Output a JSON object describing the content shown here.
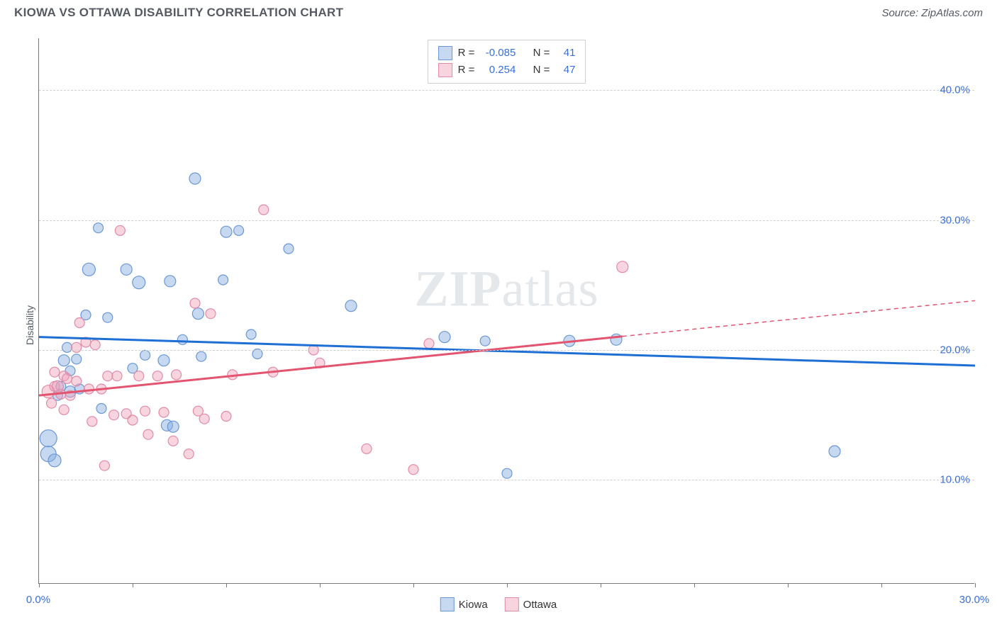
{
  "header": {
    "title": "KIOWA VS OTTAWA DISABILITY CORRELATION CHART",
    "source": "Source: ZipAtlas.com"
  },
  "ylabel": "Disability",
  "watermark_bold": "ZIP",
  "watermark_rest": "atlas",
  "chart": {
    "type": "scatter",
    "xlim": [
      0,
      30
    ],
    "ylim": [
      2,
      44
    ],
    "xticks": [
      0,
      3,
      6,
      9,
      12,
      15,
      18,
      21,
      24,
      27,
      30
    ],
    "xtick_labels": {
      "0": "0.0%",
      "30": "30.0%"
    },
    "yticks": [
      10,
      20,
      30,
      40
    ],
    "ytick_labels": [
      "10.0%",
      "20.0%",
      "30.0%",
      "40.0%"
    ],
    "background_color": "#ffffff",
    "grid_color": "#d0d0d0",
    "axis_color": "#777777",
    "tick_label_color": "#3a6fd8",
    "series": [
      {
        "name": "Kiowa",
        "fill": "rgba(130,170,225,0.45)",
        "stroke": "#6a97d3",
        "trend_color": "#1d6fd6",
        "trend": {
          "x1": 0,
          "y1": 21.0,
          "x2": 30,
          "y2": 18.8,
          "solid_until_x": 30
        },
        "r_value": "-0.085",
        "n_value": "41",
        "points": [
          {
            "x": 0.3,
            "y": 13.2,
            "r": 12
          },
          {
            "x": 0.3,
            "y": 12.0,
            "r": 11
          },
          {
            "x": 0.5,
            "y": 11.5,
            "r": 9
          },
          {
            "x": 0.6,
            "y": 16.5,
            "r": 7
          },
          {
            "x": 0.7,
            "y": 17.2,
            "r": 7
          },
          {
            "x": 0.8,
            "y": 19.2,
            "r": 8
          },
          {
            "x": 0.9,
            "y": 20.2,
            "r": 7
          },
          {
            "x": 1.0,
            "y": 16.8,
            "r": 8
          },
          {
            "x": 1.0,
            "y": 18.4,
            "r": 7
          },
          {
            "x": 1.2,
            "y": 19.3,
            "r": 7
          },
          {
            "x": 1.3,
            "y": 17.0,
            "r": 7
          },
          {
            "x": 1.5,
            "y": 22.7,
            "r": 7
          },
          {
            "x": 1.6,
            "y": 26.2,
            "r": 9
          },
          {
            "x": 1.9,
            "y": 29.4,
            "r": 7
          },
          {
            "x": 2.0,
            "y": 15.5,
            "r": 7
          },
          {
            "x": 2.2,
            "y": 22.5,
            "r": 7
          },
          {
            "x": 2.8,
            "y": 26.2,
            "r": 8
          },
          {
            "x": 3.0,
            "y": 18.6,
            "r": 7
          },
          {
            "x": 3.2,
            "y": 25.2,
            "r": 9
          },
          {
            "x": 3.4,
            "y": 19.6,
            "r": 7
          },
          {
            "x": 4.0,
            "y": 19.2,
            "r": 8
          },
          {
            "x": 4.1,
            "y": 14.2,
            "r": 8
          },
          {
            "x": 4.2,
            "y": 25.3,
            "r": 8
          },
          {
            "x": 4.3,
            "y": 14.1,
            "r": 8
          },
          {
            "x": 4.6,
            "y": 20.8,
            "r": 7
          },
          {
            "x": 5.0,
            "y": 33.2,
            "r": 8
          },
          {
            "x": 5.1,
            "y": 22.8,
            "r": 8
          },
          {
            "x": 5.2,
            "y": 19.5,
            "r": 7
          },
          {
            "x": 5.9,
            "y": 25.4,
            "r": 7
          },
          {
            "x": 6.0,
            "y": 29.1,
            "r": 8
          },
          {
            "x": 6.4,
            "y": 29.2,
            "r": 7
          },
          {
            "x": 6.8,
            "y": 21.2,
            "r": 7
          },
          {
            "x": 7.0,
            "y": 19.7,
            "r": 7
          },
          {
            "x": 8.0,
            "y": 27.8,
            "r": 7
          },
          {
            "x": 10.0,
            "y": 23.4,
            "r": 8
          },
          {
            "x": 13.0,
            "y": 21.0,
            "r": 8
          },
          {
            "x": 14.3,
            "y": 20.7,
            "r": 7
          },
          {
            "x": 15.0,
            "y": 10.5,
            "r": 7
          },
          {
            "x": 17.0,
            "y": 20.7,
            "r": 8
          },
          {
            "x": 18.5,
            "y": 20.8,
            "r": 8
          },
          {
            "x": 25.5,
            "y": 12.2,
            "r": 8
          }
        ]
      },
      {
        "name": "Ottawa",
        "fill": "rgba(240,160,185,0.45)",
        "stroke": "#e08aa7",
        "trend_color": "#e2546f",
        "trend": {
          "x1": 0,
          "y1": 16.5,
          "x2": 30,
          "y2": 23.8,
          "solid_until_x": 18.7
        },
        "r_value": "0.254",
        "n_value": "47",
        "points": [
          {
            "x": 0.3,
            "y": 16.8,
            "r": 9
          },
          {
            "x": 0.4,
            "y": 15.9,
            "r": 7
          },
          {
            "x": 0.5,
            "y": 17.2,
            "r": 7
          },
          {
            "x": 0.5,
            "y": 18.3,
            "r": 7
          },
          {
            "x": 0.6,
            "y": 17.2,
            "r": 8
          },
          {
            "x": 0.7,
            "y": 16.6,
            "r": 7
          },
          {
            "x": 0.8,
            "y": 18.0,
            "r": 7
          },
          {
            "x": 0.8,
            "y": 15.4,
            "r": 7
          },
          {
            "x": 0.9,
            "y": 17.8,
            "r": 7
          },
          {
            "x": 1.0,
            "y": 16.5,
            "r": 7
          },
          {
            "x": 1.2,
            "y": 20.2,
            "r": 7
          },
          {
            "x": 1.2,
            "y": 17.6,
            "r": 7
          },
          {
            "x": 1.3,
            "y": 22.1,
            "r": 7
          },
          {
            "x": 1.5,
            "y": 20.6,
            "r": 7
          },
          {
            "x": 1.6,
            "y": 17.0,
            "r": 7
          },
          {
            "x": 1.7,
            "y": 14.5,
            "r": 7
          },
          {
            "x": 1.8,
            "y": 20.4,
            "r": 7
          },
          {
            "x": 2.0,
            "y": 17.0,
            "r": 7
          },
          {
            "x": 2.1,
            "y": 11.1,
            "r": 7
          },
          {
            "x": 2.2,
            "y": 18.0,
            "r": 7
          },
          {
            "x": 2.4,
            "y": 15.0,
            "r": 7
          },
          {
            "x": 2.5,
            "y": 18.0,
            "r": 7
          },
          {
            "x": 2.6,
            "y": 29.2,
            "r": 7
          },
          {
            "x": 2.8,
            "y": 15.1,
            "r": 7
          },
          {
            "x": 3.0,
            "y": 14.6,
            "r": 7
          },
          {
            "x": 3.2,
            "y": 18.0,
            "r": 7
          },
          {
            "x": 3.4,
            "y": 15.3,
            "r": 7
          },
          {
            "x": 3.5,
            "y": 13.5,
            "r": 7
          },
          {
            "x": 3.8,
            "y": 18.0,
            "r": 7
          },
          {
            "x": 4.0,
            "y": 15.2,
            "r": 7
          },
          {
            "x": 4.3,
            "y": 13.0,
            "r": 7
          },
          {
            "x": 4.4,
            "y": 18.1,
            "r": 7
          },
          {
            "x": 4.8,
            "y": 12.0,
            "r": 7
          },
          {
            "x": 5.0,
            "y": 23.6,
            "r": 7
          },
          {
            "x": 5.1,
            "y": 15.3,
            "r": 7
          },
          {
            "x": 5.3,
            "y": 14.7,
            "r": 7
          },
          {
            "x": 5.5,
            "y": 22.8,
            "r": 7
          },
          {
            "x": 6.0,
            "y": 14.9,
            "r": 7
          },
          {
            "x": 6.2,
            "y": 18.1,
            "r": 7
          },
          {
            "x": 7.2,
            "y": 30.8,
            "r": 7
          },
          {
            "x": 7.5,
            "y": 18.3,
            "r": 7
          },
          {
            "x": 8.8,
            "y": 20.0,
            "r": 7
          },
          {
            "x": 9.0,
            "y": 19.0,
            "r": 7
          },
          {
            "x": 10.5,
            "y": 12.4,
            "r": 7
          },
          {
            "x": 12.0,
            "y": 10.8,
            "r": 7
          },
          {
            "x": 12.5,
            "y": 20.5,
            "r": 7
          },
          {
            "x": 18.7,
            "y": 26.4,
            "r": 8
          }
        ]
      }
    ]
  },
  "legend_top": {
    "r_label": "R =",
    "n_label": "N ="
  },
  "legend_bottom": [
    {
      "label": "Kiowa",
      "fill": "rgba(130,170,225,0.45)",
      "stroke": "#6a97d3"
    },
    {
      "label": "Ottawa",
      "fill": "rgba(240,160,185,0.45)",
      "stroke": "#e08aa7"
    }
  ]
}
